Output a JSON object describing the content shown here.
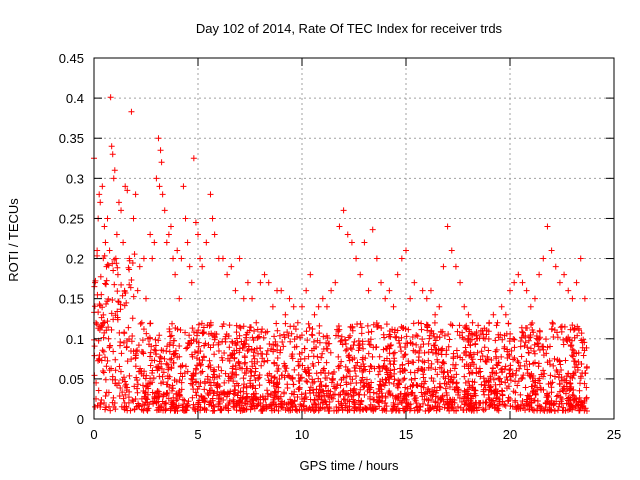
{
  "chart_data": {
    "type": "scatter",
    "title": "Day 102 of 2014, Rate Of TEC Index for receiver trds",
    "xlabel": "GPS time / hours",
    "ylabel": "ROTI / TECUs",
    "xlim": [
      0,
      25
    ],
    "ylim": [
      0,
      0.45
    ],
    "x_ticks": [
      0,
      5,
      10,
      15,
      20,
      25
    ],
    "x_tick_labels": [
      "0",
      "5",
      "10",
      "15",
      "20",
      "25"
    ],
    "y_ticks": [
      0,
      0.05,
      0.1,
      0.15,
      0.2,
      0.25,
      0.3,
      0.35,
      0.4,
      0.45
    ],
    "y_tick_labels": [
      "0",
      "0.05",
      "0.1",
      "0.15",
      "0.2",
      "0.25",
      "0.3",
      "0.35",
      "0.4",
      "0.45"
    ],
    "grid": true,
    "marker": "+",
    "color": "#ff0000",
    "series": [
      {
        "name": "ROTI",
        "points": [
          [
            0.0,
            0.325
          ],
          [
            0.05,
            0.17
          ],
          [
            0.1,
            0.045
          ],
          [
            0.15,
            0.21
          ],
          [
            0.2,
            0.25
          ],
          [
            0.25,
            0.28
          ],
          [
            0.3,
            0.27
          ],
          [
            0.35,
            0.155
          ],
          [
            0.4,
            0.29
          ],
          [
            0.45,
            0.12
          ],
          [
            0.5,
            0.24
          ],
          [
            0.55,
            0.22
          ],
          [
            0.6,
            0.19
          ],
          [
            0.65,
            0.25
          ],
          [
            0.7,
            0.1
          ],
          [
            0.75,
            0.21
          ],
          [
            0.8,
            0.401
          ],
          [
            0.85,
            0.34
          ],
          [
            0.9,
            0.33
          ],
          [
            0.95,
            0.3
          ],
          [
            1.0,
            0.31
          ],
          [
            1.05,
            0.2
          ],
          [
            1.1,
            0.23
          ],
          [
            1.15,
            0.18
          ],
          [
            1.2,
            0.27
          ],
          [
            1.3,
            0.26
          ],
          [
            1.4,
            0.22
          ],
          [
            1.5,
            0.29
          ],
          [
            1.6,
            0.285
          ],
          [
            1.7,
            0.2
          ],
          [
            1.8,
            0.383
          ],
          [
            1.9,
            0.25
          ],
          [
            2.0,
            0.28
          ],
          [
            2.1,
            0.16
          ],
          [
            2.2,
            0.19
          ],
          [
            2.3,
            0.12
          ],
          [
            2.4,
            0.2
          ],
          [
            2.5,
            0.15
          ],
          [
            2.6,
            0.1
          ],
          [
            2.7,
            0.23
          ],
          [
            2.8,
            0.2
          ],
          [
            2.9,
            0.22
          ],
          [
            3.0,
            0.3
          ],
          [
            3.1,
            0.35
          ],
          [
            3.15,
            0.29
          ],
          [
            3.2,
            0.335
          ],
          [
            3.25,
            0.32
          ],
          [
            3.3,
            0.28
          ],
          [
            3.4,
            0.26
          ],
          [
            3.5,
            0.22
          ],
          [
            3.6,
            0.23
          ],
          [
            3.7,
            0.24
          ],
          [
            3.8,
            0.2
          ],
          [
            3.9,
            0.18
          ],
          [
            4.0,
            0.21
          ],
          [
            4.1,
            0.15
          ],
          [
            4.2,
            0.2
          ],
          [
            4.3,
            0.29
          ],
          [
            4.4,
            0.25
          ],
          [
            4.5,
            0.22
          ],
          [
            4.6,
            0.19
          ],
          [
            4.7,
            0.17
          ],
          [
            4.8,
            0.325
          ],
          [
            4.9,
            0.245
          ],
          [
            5.0,
            0.23
          ],
          [
            5.1,
            0.2
          ],
          [
            5.2,
            0.19
          ],
          [
            5.4,
            0.22
          ],
          [
            5.6,
            0.28
          ],
          [
            5.7,
            0.25
          ],
          [
            5.8,
            0.23
          ],
          [
            6.0,
            0.2
          ],
          [
            6.2,
            0.2
          ],
          [
            6.4,
            0.18
          ],
          [
            6.6,
            0.19
          ],
          [
            6.8,
            0.16
          ],
          [
            7.0,
            0.2
          ],
          [
            7.2,
            0.15
          ],
          [
            7.4,
            0.17
          ],
          [
            7.6,
            0.15
          ],
          [
            7.8,
            0.12
          ],
          [
            8.0,
            0.17
          ],
          [
            8.2,
            0.18
          ],
          [
            8.4,
            0.17
          ],
          [
            8.6,
            0.14
          ],
          [
            8.8,
            0.16
          ],
          [
            9.0,
            0.16
          ],
          [
            9.2,
            0.13
          ],
          [
            9.4,
            0.15
          ],
          [
            9.6,
            0.14
          ],
          [
            9.8,
            0.12
          ],
          [
            10.0,
            0.14
          ],
          [
            10.2,
            0.16
          ],
          [
            10.4,
            0.18
          ],
          [
            10.6,
            0.13
          ],
          [
            10.8,
            0.14
          ],
          [
            11.0,
            0.15
          ],
          [
            11.2,
            0.14
          ],
          [
            11.4,
            0.16
          ],
          [
            11.6,
            0.17
          ],
          [
            11.8,
            0.24
          ],
          [
            12.0,
            0.26
          ],
          [
            12.2,
            0.23
          ],
          [
            12.4,
            0.22
          ],
          [
            12.6,
            0.2
          ],
          [
            12.8,
            0.18
          ],
          [
            13.0,
            0.22
          ],
          [
            13.2,
            0.16
          ],
          [
            13.4,
            0.236
          ],
          [
            13.6,
            0.2
          ],
          [
            13.8,
            0.17
          ],
          [
            14.0,
            0.15
          ],
          [
            14.2,
            0.16
          ],
          [
            14.4,
            0.14
          ],
          [
            14.6,
            0.18
          ],
          [
            14.8,
            0.2
          ],
          [
            15.0,
            0.21
          ],
          [
            15.2,
            0.15
          ],
          [
            15.4,
            0.17
          ],
          [
            15.6,
            0.12
          ],
          [
            15.8,
            0.16
          ],
          [
            16.0,
            0.15
          ],
          [
            16.2,
            0.16
          ],
          [
            16.4,
            0.13
          ],
          [
            16.6,
            0.14
          ],
          [
            16.8,
            0.19
          ],
          [
            17.0,
            0.24
          ],
          [
            17.2,
            0.21
          ],
          [
            17.4,
            0.19
          ],
          [
            17.6,
            0.17
          ],
          [
            17.8,
            0.14
          ],
          [
            18.0,
            0.13
          ],
          [
            18.2,
            0.12
          ],
          [
            18.4,
            0.1
          ],
          [
            18.6,
            0.11
          ],
          [
            18.8,
            0.1
          ],
          [
            19.0,
            0.12
          ],
          [
            19.2,
            0.13
          ],
          [
            19.4,
            0.12
          ],
          [
            19.6,
            0.14
          ],
          [
            19.8,
            0.13
          ],
          [
            20.0,
            0.16
          ],
          [
            20.2,
            0.17
          ],
          [
            20.4,
            0.18
          ],
          [
            20.6,
            0.17
          ],
          [
            20.8,
            0.16
          ],
          [
            21.0,
            0.14
          ],
          [
            21.2,
            0.15
          ],
          [
            21.4,
            0.18
          ],
          [
            21.6,
            0.2
          ],
          [
            21.8,
            0.24
          ],
          [
            22.0,
            0.21
          ],
          [
            22.2,
            0.19
          ],
          [
            22.4,
            0.17
          ],
          [
            22.6,
            0.18
          ],
          [
            22.8,
            0.16
          ],
          [
            23.0,
            0.15
          ],
          [
            23.2,
            0.17
          ],
          [
            23.4,
            0.2
          ],
          [
            23.6,
            0.15
          ],
          [
            0.3,
            0.015
          ],
          [
            1.0,
            0.02
          ],
          [
            1.5,
            0.03
          ],
          [
            2.0,
            0.025
          ],
          [
            2.5,
            0.04
          ],
          [
            3.0,
            0.02
          ],
          [
            3.5,
            0.03
          ],
          [
            4.0,
            0.025
          ],
          [
            4.5,
            0.015
          ],
          [
            5.0,
            0.02
          ],
          [
            5.5,
            0.03
          ],
          [
            6.0,
            0.025
          ],
          [
            6.5,
            0.02
          ],
          [
            7.0,
            0.015
          ],
          [
            7.5,
            0.025
          ],
          [
            8.0,
            0.02
          ],
          [
            8.5,
            0.03
          ],
          [
            9.0,
            0.015
          ],
          [
            9.5,
            0.02
          ],
          [
            10.0,
            0.025
          ],
          [
            10.5,
            0.015
          ],
          [
            11.0,
            0.02
          ],
          [
            11.5,
            0.03
          ],
          [
            12.0,
            0.025
          ],
          [
            12.5,
            0.02
          ],
          [
            13.0,
            0.03
          ],
          [
            13.5,
            0.015
          ],
          [
            14.0,
            0.02
          ],
          [
            14.5,
            0.025
          ],
          [
            15.0,
            0.03
          ],
          [
            15.5,
            0.02
          ],
          [
            16.0,
            0.025
          ],
          [
            16.5,
            0.015
          ],
          [
            17.0,
            0.02
          ],
          [
            17.5,
            0.03
          ],
          [
            18.0,
            0.025
          ],
          [
            18.5,
            0.02
          ],
          [
            19.0,
            0.015
          ],
          [
            19.5,
            0.02
          ],
          [
            20.0,
            0.025
          ],
          [
            20.5,
            0.03
          ],
          [
            21.0,
            0.02
          ],
          [
            21.5,
            0.015
          ],
          [
            22.0,
            0.02
          ],
          [
            22.5,
            0.025
          ],
          [
            23.0,
            0.03
          ],
          [
            23.5,
            0.02
          ],
          [
            23.7,
            0.01
          ]
        ],
        "dense_band": {
          "x_range": [
            0,
            23.7
          ],
          "typical_range": [
            0.01,
            0.12
          ],
          "point_count": 2400
        }
      }
    ]
  }
}
